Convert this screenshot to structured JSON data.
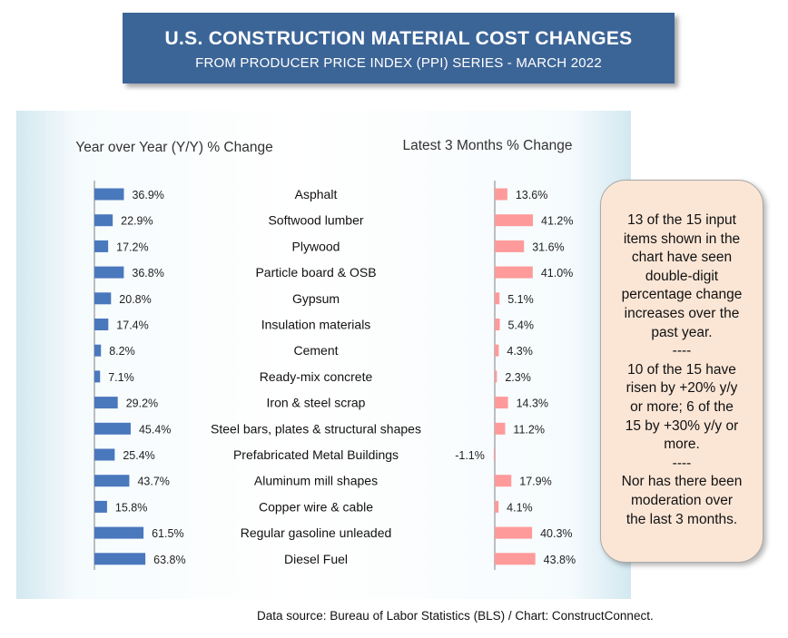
{
  "header": {
    "title": "U.S. CONSTRUCTION MATERIAL COST CHANGES",
    "subtitle": "FROM PRODUCER PRICE INDEX (PPI) SERIES - MARCH 2022"
  },
  "chart_data": {
    "type": "bar",
    "orientation": "horizontal",
    "categories": [
      "Asphalt",
      "Softwood lumber",
      "Plywood",
      "Particle board & OSB",
      "Gypsum",
      "Insulation materials",
      "Cement",
      "Ready-mix concrete",
      "Iron & steel scrap",
      "Steel bars, plates & structural shapes",
      "Prefabricated Metal Buildings",
      "Aluminum mill shapes",
      "Copper wire & cable",
      "Regular gasoline unleaded",
      "Diesel Fuel"
    ],
    "series": [
      {
        "name": "Year over Year (Y/Y) % Change",
        "values": [
          36.9,
          22.9,
          17.2,
          36.8,
          20.8,
          17.4,
          8.2,
          7.1,
          29.2,
          45.4,
          25.4,
          43.7,
          15.8,
          61.5,
          63.8
        ],
        "labels": [
          "36.9%",
          "22.9%",
          "17.2%",
          "36.8%",
          "20.8%",
          "17.4%",
          "8.2%",
          "7.1%",
          "29.2%",
          "45.4%",
          "25.4%",
          "43.7%",
          "15.8%",
          "61.5%",
          "63.8%"
        ],
        "color": "#4a78bd"
      },
      {
        "name": "Latest 3 Months % Change",
        "values": [
          13.6,
          41.2,
          31.6,
          41.0,
          5.1,
          5.4,
          4.3,
          2.3,
          14.3,
          11.2,
          -1.1,
          17.9,
          4.1,
          40.3,
          43.8
        ],
        "labels": [
          "13.6%",
          "41.2%",
          "31.6%",
          "41.0%",
          "5.1%",
          "5.4%",
          "4.3%",
          "2.3%",
          "14.3%",
          "11.2%",
          "-1.1%",
          "17.9%",
          "4.1%",
          "40.3%",
          "43.8%"
        ],
        "color": "#ff9a9a"
      }
    ]
  },
  "callout": {
    "lines": [
      "13 of the 15 input",
      "items shown in the",
      "chart have seen",
      "double-digit",
      "percentage change",
      "increases over the",
      "past year.",
      "----",
      "10 of the 15  have",
      "risen by +20% y/y",
      "or more; 6 of the",
      "15 by +30% y/y or",
      "more.",
      "----",
      "Nor has there been",
      "moderation over",
      "the last 3 months."
    ]
  },
  "footer": {
    "source": "Data source: Bureau of Labor Statistics (BLS) / Chart: ConstructConnect."
  }
}
